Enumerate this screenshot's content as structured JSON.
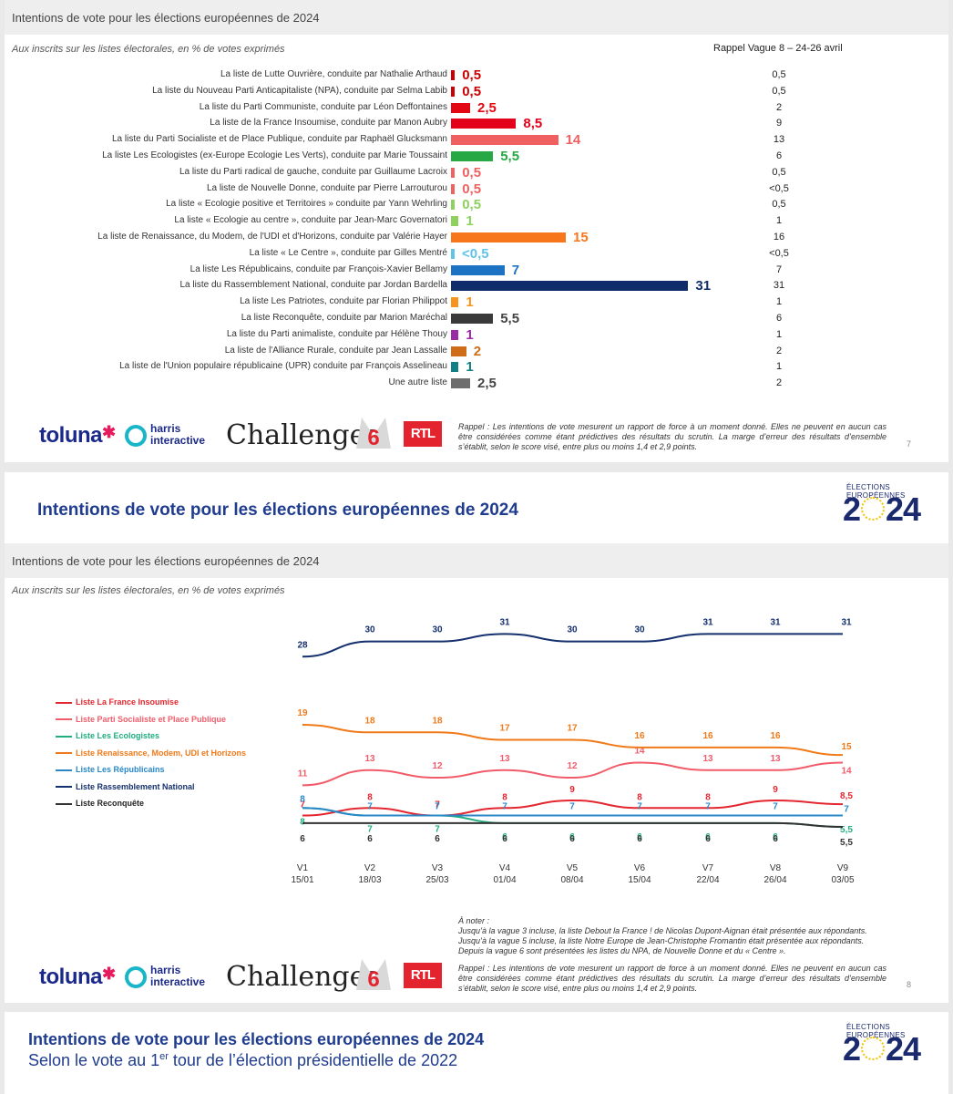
{
  "slide1": {
    "header": "Intentions de vote pour les élections européennes de 2024",
    "subtitle": "Aux inscrits sur les listes électorales, en % de votes exprimés",
    "recall_header": "Rappel Vague 8 – 24-26 avril",
    "page_number": "7",
    "disclaimer": "Rappel : Les intentions de vote mesurent un rapport de force à un moment donné. Elles ne peuvent en aucun cas être considérées comme étant prédictives des résultats du scrutin. La marge d’erreur des résultats d’ensemble s’établit, selon le score visé, entre plus ou moins 1,4 et 2,9 points."
  },
  "logos": {
    "toluna": "toluna",
    "harris": [
      "harris",
      "interactive"
    ],
    "challenges": "Challenges",
    "m6": "6",
    "rtl": "RTL"
  },
  "slide2": {
    "big_title": "Intentions de vote pour les élections européennes de 2024",
    "header": "Intentions de vote pour les élections européennes de 2024",
    "subtitle": "Aux inscrits sur les listes électorales, en % de votes exprimés",
    "page_number": "8",
    "note_title": "À noter :",
    "notes": [
      "Jusqu’à la vague 3 incluse, la liste Debout la France ! de Nicolas Dupont-Aignan était présentée aux répondants.",
      "Jusqu’à la vague 5 incluse, la liste Notre Europe de Jean-Christophe Fromantin était présentée aux répondants.",
      "Depuis la vague 6 sont présentées les listes du NPA, de Nouvelle Donne et du « Centre »."
    ],
    "disclaimer": "Rappel : Les intentions de vote mesurent un rapport de force à un moment donné. Elles ne peuvent en aucun cas être considérées comme étant prédictives des résultats du scrutin. La marge d’erreur des résultats d’ensemble s’établit, selon le score visé, entre plus ou moins 1,4 et 2,9 points."
  },
  "euro_badge": {
    "small": "ÉLECTIONS EUROPÉENNES",
    "year_start": "2",
    "year_end": "24"
  },
  "slide3": {
    "title": "Intentions de vote pour les élections européennes de 2024",
    "subtitle_start": "Selon le vote au 1",
    "subtitle_sup": "er",
    "subtitle_end": " tour de l’élection présidentielle de 2022"
  },
  "chart_data": [
    {
      "type": "bar",
      "title": "Intentions de vote pour les élections européennes de 2024",
      "subtitle": "Aux inscrits sur les listes électorales, en % de votes exprimés",
      "categories": [
        "La liste de Lutte Ouvrière, conduite par Nathalie Arthaud",
        "La liste du Nouveau Parti Anticapitaliste (NPA), conduite par Selma Labib",
        "La liste du Parti Communiste, conduite par Léon Deffontaines",
        "La liste de la France Insoumise, conduite par Manon Aubry",
        "La liste du Parti Socialiste et de Place Publique, conduite par Raphaël Glucksmann",
        "La liste Les Ecologistes (ex-Europe Ecologie Les Verts), conduite par Marie Toussaint",
        "La liste du Parti radical de gauche, conduite par Guillaume Lacroix",
        "La liste de Nouvelle Donne, conduite par Pierre Larrouturou",
        "La liste « Ecologie positive et Territoires » conduite par Yann Wehrling",
        "La liste « Ecologie au centre », conduite par Jean-Marc Governatori",
        "La liste de Renaissance, du Modem, de l'UDI et d'Horizons, conduite par Valérie Hayer",
        "La liste « Le Centre », conduite par Gilles Mentré",
        "La liste Les Républicains, conduite par François-Xavier Bellamy",
        "La liste du Rassemblement National, conduite par Jordan Bardella",
        "La liste Les Patriotes, conduite par Florian Philippot",
        "La liste Reconquête, conduite par Marion Maréchal",
        "La liste du Parti animaliste, conduite par Hélène Thouy",
        "La liste de l'Alliance Rurale, conduite par Jean Lassalle",
        "La liste de l'Union populaire républicaine (UPR) conduite par François Asselineau",
        "Une autre liste"
      ],
      "values": [
        0.5,
        0.5,
        2.5,
        8.5,
        14,
        5.5,
        0.5,
        0.5,
        0.5,
        1,
        15,
        0.2,
        7,
        31,
        1,
        5.5,
        1,
        2,
        1,
        2.5
      ],
      "value_labels": [
        "0,5",
        "0,5",
        "2,5",
        "8,5",
        "14",
        "5,5",
        "0,5",
        "0,5",
        "0,5",
        "1",
        "15",
        "<0,5",
        "7",
        "31",
        "1",
        "5,5",
        "1",
        "2",
        "1",
        "2,5"
      ],
      "colors": [
        "#cc0000",
        "#cc0000",
        "#e30613",
        "#e3001b",
        "#f06060",
        "#27a844",
        "#f06262",
        "#f06262",
        "#8ed15f",
        "#8ed15f",
        "#f7761c",
        "#5fc4e8",
        "#1c73c4",
        "#102d6b",
        "#f7941d",
        "#3a3a3a",
        "#9b2aa6",
        "#cf6c1a",
        "#127e85",
        "#6d6d6d"
      ],
      "recall_v8": [
        "0,5",
        "0,5",
        "2",
        "9",
        "13",
        "6",
        "0,5",
        "<0,5",
        "0,5",
        "1",
        "16",
        "<0,5",
        "7",
        "31",
        "1",
        "6",
        "1",
        "2",
        "1",
        "2"
      ]
    },
    {
      "type": "line",
      "title": "Intentions de vote pour les élections européennes de 2024",
      "subtitle": "Aux inscrits sur les listes électorales, en % de votes exprimés",
      "x": [
        "V1",
        "V2",
        "V3",
        "V4",
        "V5",
        "V6",
        "V7",
        "V8",
        "V9"
      ],
      "x_dates": [
        "15/01",
        "18/03",
        "25/03",
        "01/04",
        "08/04",
        "15/04",
        "22/04",
        "26/04",
        "03/05"
      ],
      "legend_position": "left",
      "series": [
        {
          "name": "Liste La France Insoumise",
          "color": "#e3262f",
          "values": [
            7,
            8,
            7,
            8,
            9,
            8,
            8,
            9,
            8.5
          ],
          "labels": [
            "7",
            "8",
            "7",
            "8",
            "9",
            "8",
            "8",
            "9",
            "8,5"
          ]
        },
        {
          "name": "Liste Parti Socialiste et Place Publique",
          "color": "#f25c6a",
          "values": [
            11,
            13,
            12,
            13,
            12,
            14,
            13,
            13,
            14
          ],
          "labels": [
            "11",
            "13",
            "12",
            "13",
            "12",
            "14",
            "13",
            "13",
            "14"
          ]
        },
        {
          "name": "Liste Les Ecologistes",
          "color": "#1fae80",
          "values": [
            8,
            7,
            7,
            6,
            6,
            6,
            6,
            6,
            5.5
          ],
          "labels": [
            "8",
            "7",
            "7",
            "6",
            "6",
            "6",
            "6",
            "6",
            "5,5"
          ]
        },
        {
          "name": "Liste Renaissance, Modem, UDI et Horizons",
          "color": "#f07a1a",
          "values": [
            19,
            18,
            18,
            17,
            17,
            16,
            16,
            16,
            15
          ],
          "labels": [
            "19",
            "18",
            "18",
            "17",
            "17",
            "16",
            "16",
            "16",
            "15"
          ]
        },
        {
          "name": "Liste Les Républicains",
          "color": "#2a88c9",
          "values": [
            8,
            7,
            7,
            7,
            7,
            7,
            7,
            7,
            7
          ],
          "labels": [
            "8",
            "7",
            "7",
            "7",
            "7",
            "7",
            "7",
            "7",
            "7"
          ]
        },
        {
          "name": "Liste Rassemblement National",
          "color": "#15306e",
          "values": [
            28,
            30,
            30,
            31,
            30,
            30,
            31,
            31,
            31
          ],
          "labels": [
            "28",
            "30",
            "30",
            "31",
            "30",
            "30",
            "31",
            "31",
            "31"
          ]
        },
        {
          "name": "Liste Reconquête",
          "color": "#333333",
          "values": [
            6,
            6,
            6,
            6,
            6,
            6,
            6,
            6,
            5.5
          ],
          "labels": [
            "6",
            "6",
            "6",
            "6",
            "6",
            "6",
            "6",
            "6",
            "5,5"
          ]
        }
      ]
    }
  ]
}
